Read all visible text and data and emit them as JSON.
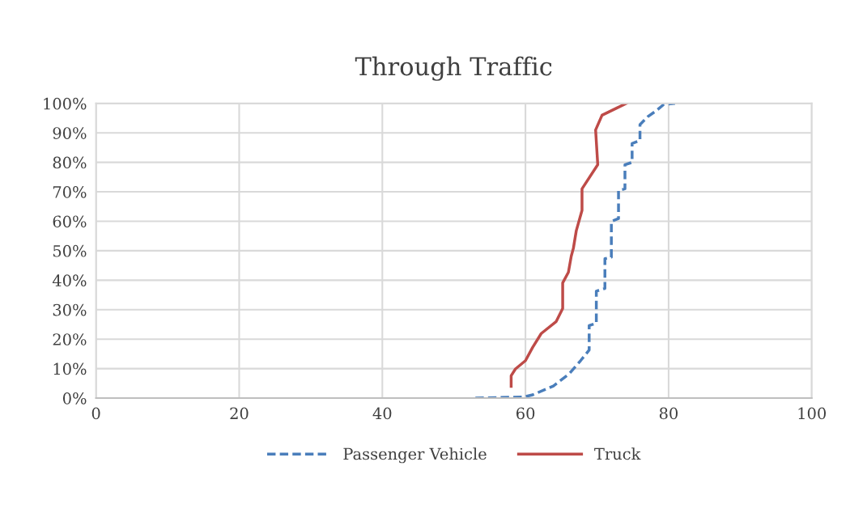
{
  "chart_data": {
    "type": "line",
    "title": "Through Traffic",
    "xlim": [
      0,
      100
    ],
    "xticks": [
      0,
      20,
      40,
      60,
      80,
      100
    ],
    "ylim": [
      0,
      100
    ],
    "yticks": [
      {
        "value": 0,
        "label": "0%"
      },
      {
        "value": 10,
        "label": "10%"
      },
      {
        "value": 20,
        "label": "20%"
      },
      {
        "value": 30,
        "label": "30%"
      },
      {
        "value": 40,
        "label": "40%"
      },
      {
        "value": 50,
        "label": "50%"
      },
      {
        "value": 60,
        "label": "60%"
      },
      {
        "value": 70,
        "label": "70%"
      },
      {
        "value": 80,
        "label": "80%"
      },
      {
        "value": 90,
        "label": "90%"
      },
      {
        "value": 100,
        "label": "100%"
      }
    ],
    "grid": true,
    "legend": "bottom",
    "marker": "none",
    "series": [
      {
        "name": "Passenger Vehicle",
        "color": "#4a7ebb",
        "line_style": "dashed",
        "x": [
          53,
          59.8,
          61,
          63.9,
          66.1,
          67.7,
          68.9,
          68.9,
          69.9,
          69.9,
          71.1,
          71.1,
          72,
          72,
          73,
          73,
          73.9,
          73.9,
          74.9,
          74.9,
          76,
          76,
          77.1,
          78.2,
          79.3,
          80.9
        ],
        "values": [
          0,
          0.4,
          1.1,
          4.1,
          8.2,
          12.7,
          16.3,
          24.6,
          25.4,
          36.3,
          37.2,
          47.3,
          47.8,
          60,
          60.9,
          70.5,
          71,
          79.2,
          80,
          86.4,
          87.4,
          92.8,
          95.5,
          97.4,
          99.6,
          100
        ]
      },
      {
        "name": "Truck",
        "color": "#be4b48",
        "line_style": "solid",
        "x": [
          58,
          58,
          58.6,
          60,
          61,
          62.2,
          64.3,
          65.2,
          65.2,
          66,
          66.4,
          66.7,
          67.1,
          67.9,
          67.9,
          70.1,
          69.8,
          70.7,
          74.1
        ],
        "values": [
          4,
          7.6,
          9.9,
          12.7,
          17.2,
          21.9,
          26,
          30.4,
          39.1,
          42.7,
          48.2,
          50.9,
          56.8,
          63.7,
          71,
          79.2,
          91,
          96,
          100
        ]
      }
    ]
  }
}
